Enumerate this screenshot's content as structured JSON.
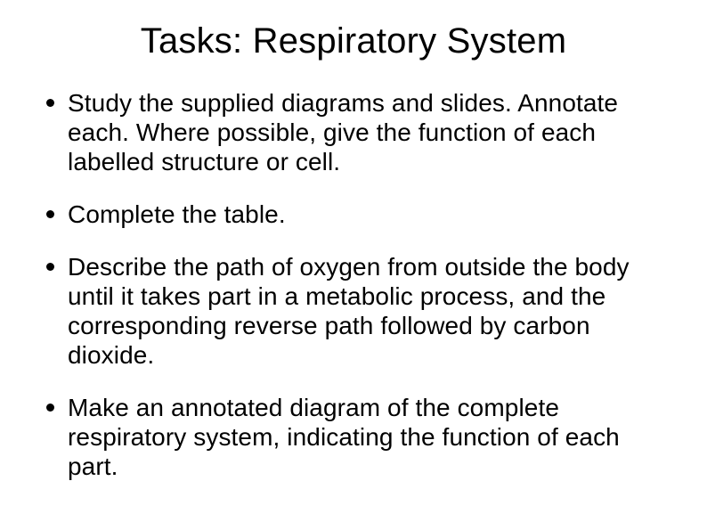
{
  "title": "Tasks: Respiratory System",
  "bullets": [
    "Study the supplied diagrams and slides. Annotate each. Where possible, give the function of each labelled structure or cell.",
    "Complete the table.",
    "Describe the path of oxygen from outside the body until it takes part in a metabolic process, and the corresponding reverse path followed by carbon dioxide.",
    "Make an annotated diagram of the complete respiratory system, indicating the function of each part."
  ]
}
